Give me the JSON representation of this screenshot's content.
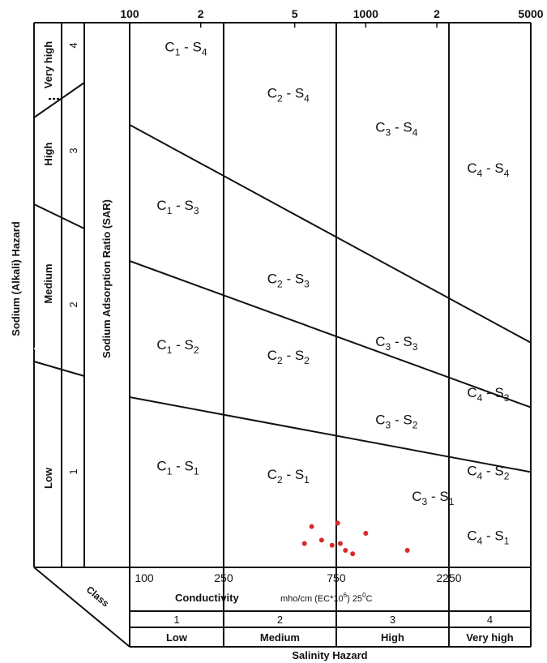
{
  "chart_data": {
    "type": "scatter",
    "title": "",
    "left_outer_label": "Sodium (Alkali) Hazard",
    "left_inner_label": "Sodium Adsorption Ratio (SAR)",
    "top_ticks": [
      "100",
      "2",
      "5",
      "1000",
      "2",
      "5000"
    ],
    "bottom_ticks": [
      "100",
      "250",
      "750",
      "2250"
    ],
    "conductivity_label": "Conductivity",
    "conductivity_units": {
      "pre": "mho/cm (EC*10",
      "sup": "6",
      "post": ")  25",
      "deg": "0",
      "end": "C"
    },
    "class_label": "Class",
    "salinity_classes": [
      "1",
      "2",
      "3",
      "4"
    ],
    "salinity_levels": [
      "Low",
      "Medium",
      "High",
      "Very high"
    ],
    "salinity_hazard_label": "Salinity Hazard",
    "sodium_levels": [
      "Low",
      "Medium",
      "High",
      "Very high"
    ],
    "sodium_classes": [
      "1",
      "2",
      "3",
      "4"
    ],
    "zones": [
      {
        "c": "1",
        "s": "4"
      },
      {
        "c": "2",
        "s": "4"
      },
      {
        "c": "3",
        "s": "4"
      },
      {
        "c": "4",
        "s": "4"
      },
      {
        "c": "1",
        "s": "3"
      },
      {
        "c": "2",
        "s": "3"
      },
      {
        "c": "3",
        "s": "3"
      },
      {
        "c": "4",
        "s": "3"
      },
      {
        "c": "1",
        "s": "2"
      },
      {
        "c": "2",
        "s": "2"
      },
      {
        "c": "3",
        "s": "2"
      },
      {
        "c": "4",
        "s": "2"
      },
      {
        "c": "1",
        "s": "1"
      },
      {
        "c": "2",
        "s": "1"
      },
      {
        "c": "3",
        "s": "1"
      },
      {
        "c": "4",
        "s": "1"
      }
    ],
    "points": [
      {
        "x": 590,
        "y": 2.4
      },
      {
        "x": 550,
        "y": 1.4
      },
      {
        "x": 650,
        "y": 1.6
      },
      {
        "x": 720,
        "y": 1.3
      },
      {
        "x": 760,
        "y": 2.6
      },
      {
        "x": 780,
        "y": 1.4
      },
      {
        "x": 820,
        "y": 1.0
      },
      {
        "x": 880,
        "y": 0.8
      },
      {
        "x": 1000,
        "y": 2.0
      },
      {
        "x": 1500,
        "y": 1.0
      }
    ],
    "point_color": "#d62b2b"
  }
}
